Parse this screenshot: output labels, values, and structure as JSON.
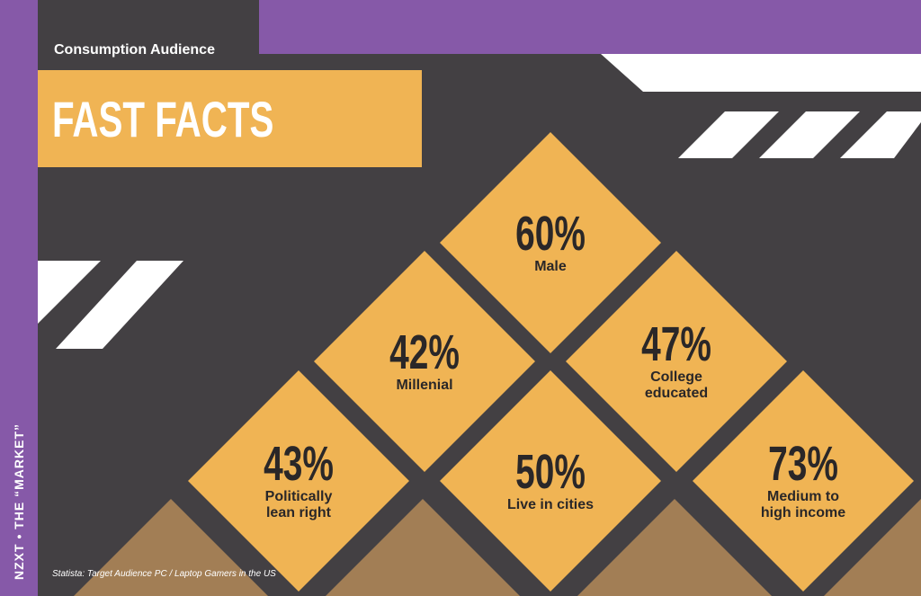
{
  "header": {
    "subtitle": "Consumption Audience",
    "title": "FAST FACTS"
  },
  "side_label": "NZXT • THE “MARKET”",
  "facts": [
    {
      "value": "60%",
      "label": [
        "Male"
      ]
    },
    {
      "value": "42%",
      "label": [
        "Millenial"
      ]
    },
    {
      "value": "47%",
      "label": [
        "College",
        "educated"
      ]
    },
    {
      "value": "43%",
      "label": [
        "Politically",
        "lean right"
      ]
    },
    {
      "value": "50%",
      "label": [
        "Live in cities"
      ]
    },
    {
      "value": "73%",
      "label": [
        "Medium to",
        "high income"
      ]
    }
  ],
  "source": "Statista: Target Audience PC / Laptop Gamers in the US"
}
